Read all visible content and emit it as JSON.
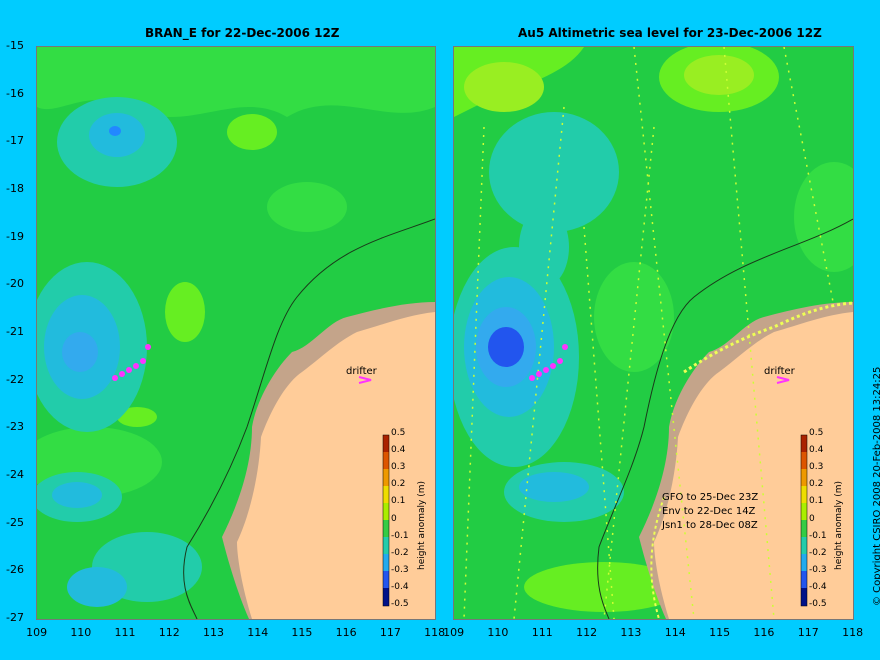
{
  "left_panel": {
    "title": "BRAN_E for 22-Dec-2006 12Z",
    "drifter_label": "drifter",
    "colorbar_label": "height anomaly (m)"
  },
  "right_panel": {
    "title": "Au5 Altimetric sea level  for 23-Dec-2006 12Z",
    "drifter_label": "drifter",
    "colorbar_label": "height anomaly (m)",
    "satellite_legend": [
      "GFO to 25-Dec 23Z",
      "Env to 22-Dec 14Z",
      "Jsn1 to 28-Dec 08Z"
    ]
  },
  "axes": {
    "lon_ticks": [
      "109",
      "110",
      "111",
      "112",
      "113",
      "114",
      "115",
      "116",
      "117",
      "118"
    ],
    "lat_ticks": [
      "-15",
      "-16",
      "-17",
      "-18",
      "-19",
      "-20",
      "-21",
      "-22",
      "-23",
      "-24",
      "-25",
      "-26",
      "-27"
    ],
    "lon_range": [
      109,
      118
    ],
    "lat_range": [
      -15,
      -27
    ]
  },
  "colorbar": {
    "ticks": [
      "0.5",
      "0.4",
      "0.3",
      "0.2",
      "0.1",
      "0",
      "-0.1",
      "-0.2",
      "-0.3",
      "-0.4",
      "-0.5"
    ],
    "range": [
      -0.5,
      0.5
    ]
  },
  "copyright": "© Copyright CSIRO 2008    20-Feb-2008 13:24:25",
  "colors": {
    "background": "#00ccff",
    "land": "#ffcc99",
    "shelf_land": "#c4a48a",
    "ocean_base": "#22cc44",
    "drifter_track": "#ff33ff"
  }
}
